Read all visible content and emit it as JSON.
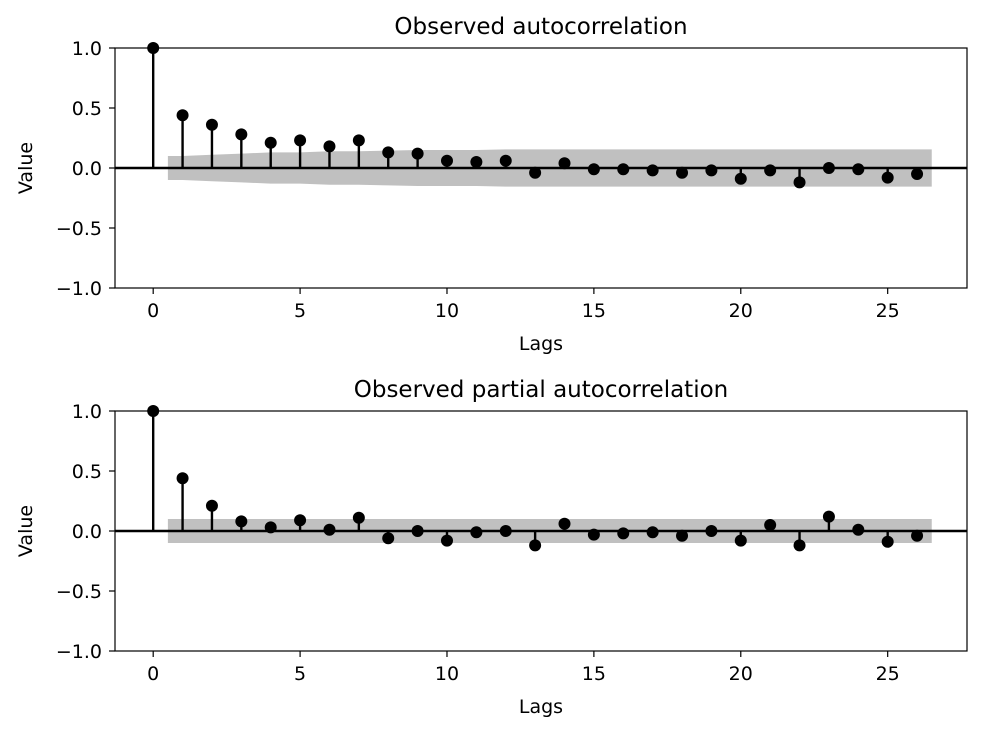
{
  "chart_data": [
    {
      "type": "stem",
      "title": "Observed autocorrelation",
      "xlabel": "Lags",
      "ylabel": "Value",
      "xlim": [
        -1.3,
        27.7
      ],
      "ylim": [
        -1.0,
        1.0
      ],
      "xticks": [
        0,
        5,
        10,
        15,
        20,
        25
      ],
      "yticks": [
        -1.0,
        -0.5,
        0.0,
        0.5,
        1.0
      ],
      "xtick_labels": [
        "0",
        "5",
        "10",
        "15",
        "20",
        "25"
      ],
      "ytick_labels": [
        "−1.0",
        "−0.5",
        "0.0",
        "0.5",
        "1.0"
      ],
      "grid": false,
      "lags": [
        0,
        1,
        2,
        3,
        4,
        5,
        6,
        7,
        8,
        9,
        10,
        11,
        12,
        13,
        14,
        15,
        16,
        17,
        18,
        19,
        20,
        21,
        22,
        23,
        24,
        25,
        26
      ],
      "values": [
        1.0,
        0.44,
        0.36,
        0.28,
        0.21,
        0.23,
        0.18,
        0.23,
        0.13,
        0.12,
        0.06,
        0.05,
        0.06,
        -0.04,
        0.04,
        -0.01,
        -0.01,
        -0.02,
        -0.04,
        -0.02,
        -0.09,
        -0.02,
        -0.12,
        0.0,
        -0.01,
        -0.08,
        -0.05
      ],
      "confidence_band": {
        "lags": [
          0.5,
          1,
          2,
          3,
          4,
          5,
          6,
          7,
          8,
          9,
          10,
          11,
          12,
          13,
          14,
          15,
          16,
          17,
          18,
          19,
          20,
          21,
          22,
          23,
          24,
          25,
          26,
          26.5
        ],
        "upper": [
          0.1,
          0.1,
          0.11,
          0.12,
          0.13,
          0.13,
          0.14,
          0.14,
          0.145,
          0.15,
          0.15,
          0.15,
          0.155,
          0.155,
          0.155,
          0.155,
          0.155,
          0.155,
          0.155,
          0.155,
          0.155,
          0.155,
          0.155,
          0.155,
          0.155,
          0.155,
          0.155,
          0.155
        ]
      },
      "colors": {
        "marker": "#000000",
        "band": "#c0c0c0",
        "zero_line": "#000000"
      }
    },
    {
      "type": "stem",
      "title": "Observed partial autocorrelation",
      "xlabel": "Lags",
      "ylabel": "Value",
      "xlim": [
        -1.3,
        27.7
      ],
      "ylim": [
        -1.0,
        1.0
      ],
      "xticks": [
        0,
        5,
        10,
        15,
        20,
        25
      ],
      "yticks": [
        -1.0,
        -0.5,
        0.0,
        0.5,
        1.0
      ],
      "xtick_labels": [
        "0",
        "5",
        "10",
        "15",
        "20",
        "25"
      ],
      "ytick_labels": [
        "−1.0",
        "−0.5",
        "0.0",
        "0.5",
        "1.0"
      ],
      "grid": false,
      "lags": [
        0,
        1,
        2,
        3,
        4,
        5,
        6,
        7,
        8,
        9,
        10,
        11,
        12,
        13,
        14,
        15,
        16,
        17,
        18,
        19,
        20,
        21,
        22,
        23,
        24,
        25,
        26
      ],
      "values": [
        1.0,
        0.44,
        0.21,
        0.08,
        0.03,
        0.09,
        0.01,
        0.11,
        -0.06,
        0.0,
        -0.08,
        -0.01,
        0.0,
        -0.12,
        0.06,
        -0.03,
        -0.02,
        -0.01,
        -0.04,
        0.0,
        -0.08,
        0.05,
        -0.12,
        0.12,
        0.01,
        -0.09,
        -0.04
      ],
      "confidence_band": {
        "lags": [
          0.5,
          26.5
        ],
        "upper": [
          0.1,
          0.1
        ]
      },
      "colors": {
        "marker": "#000000",
        "band": "#c0c0c0",
        "zero_line": "#000000"
      }
    }
  ]
}
